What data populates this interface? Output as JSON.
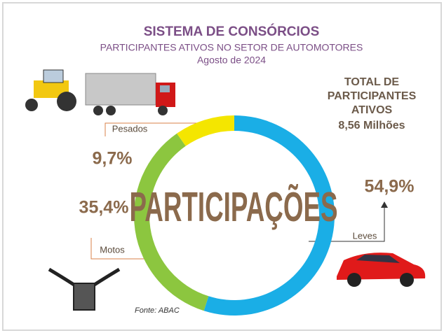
{
  "chart_data": {
    "type": "donut",
    "title": "SISTEMA DE CONSÓRCIOS",
    "subtitle": "PARTICIPANTES ATIVOS NO SETOR DE AUTOMOTORES",
    "date": "Agosto de 2024",
    "total_label": [
      "TOTAL DE",
      "PARTICIPANTES",
      "ATIVOS"
    ],
    "total_value": "8,56 Milhões",
    "center_text": "PARTICIPAÇÕES",
    "source": "Fonte: ABAC",
    "categories": [
      "Leves",
      "Motos",
      "Pesados"
    ],
    "values": [
      54.9,
      35.4,
      9.7
    ],
    "value_labels": [
      "54,9%",
      "35,4%",
      "9,7%"
    ],
    "colors": [
      "#1aaee6",
      "#8cc63f",
      "#f4e600"
    ]
  }
}
